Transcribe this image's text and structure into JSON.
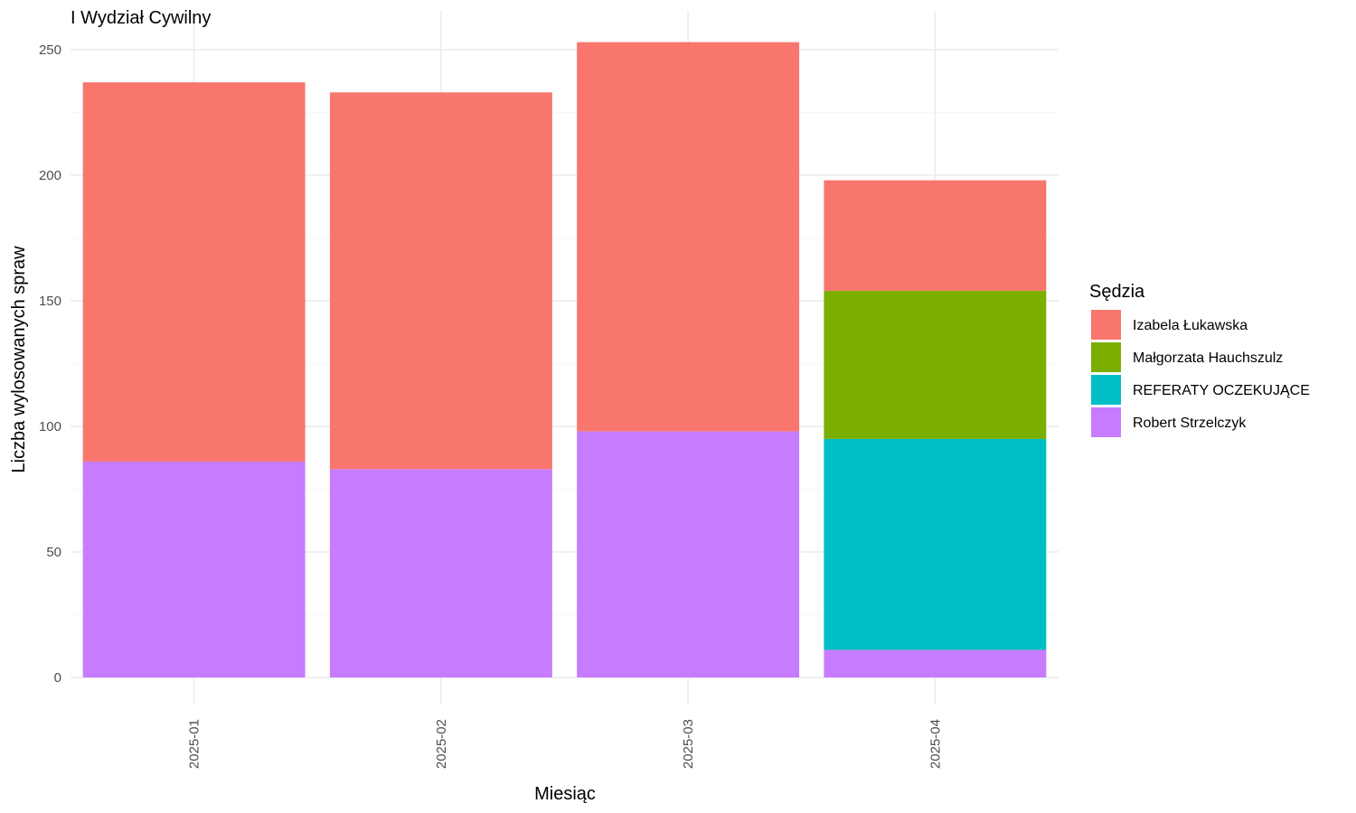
{
  "chart_data": {
    "type": "bar",
    "stacked": true,
    "title": "I Wydział Cywilny",
    "xlabel": "Miesiąc",
    "ylabel": "Liczba wylosowanych spraw",
    "legend_title": "Sędzia",
    "legend_position": "right",
    "grid": true,
    "ylim": [
      0,
      260
    ],
    "y_ticks": [
      0,
      50,
      100,
      150,
      200,
      250
    ],
    "categories": [
      "2025-01",
      "2025-02",
      "2025-03",
      "2025-04"
    ],
    "series": [
      {
        "name": "Izabela Łukawska",
        "color": "#F8766D",
        "values": [
          151,
          150,
          155,
          44
        ]
      },
      {
        "name": "Małgorzata Hauchszulz",
        "color": "#7CAE00",
        "values": [
          0,
          0,
          0,
          59
        ]
      },
      {
        "name": "REFERATY OCZEKUJĄCE",
        "color": "#00BFC4",
        "values": [
          0,
          0,
          0,
          84
        ]
      },
      {
        "name": "Robert Strzelczyk",
        "color": "#C77CFF",
        "values": [
          86,
          83,
          98,
          11
        ]
      }
    ],
    "stack_order_bottom_to_top": [
      "Robert Strzelczyk",
      "REFERATY OCZEKUJĄCE",
      "Małgorzata Hauchszulz",
      "Izabela Łukawska"
    ]
  }
}
